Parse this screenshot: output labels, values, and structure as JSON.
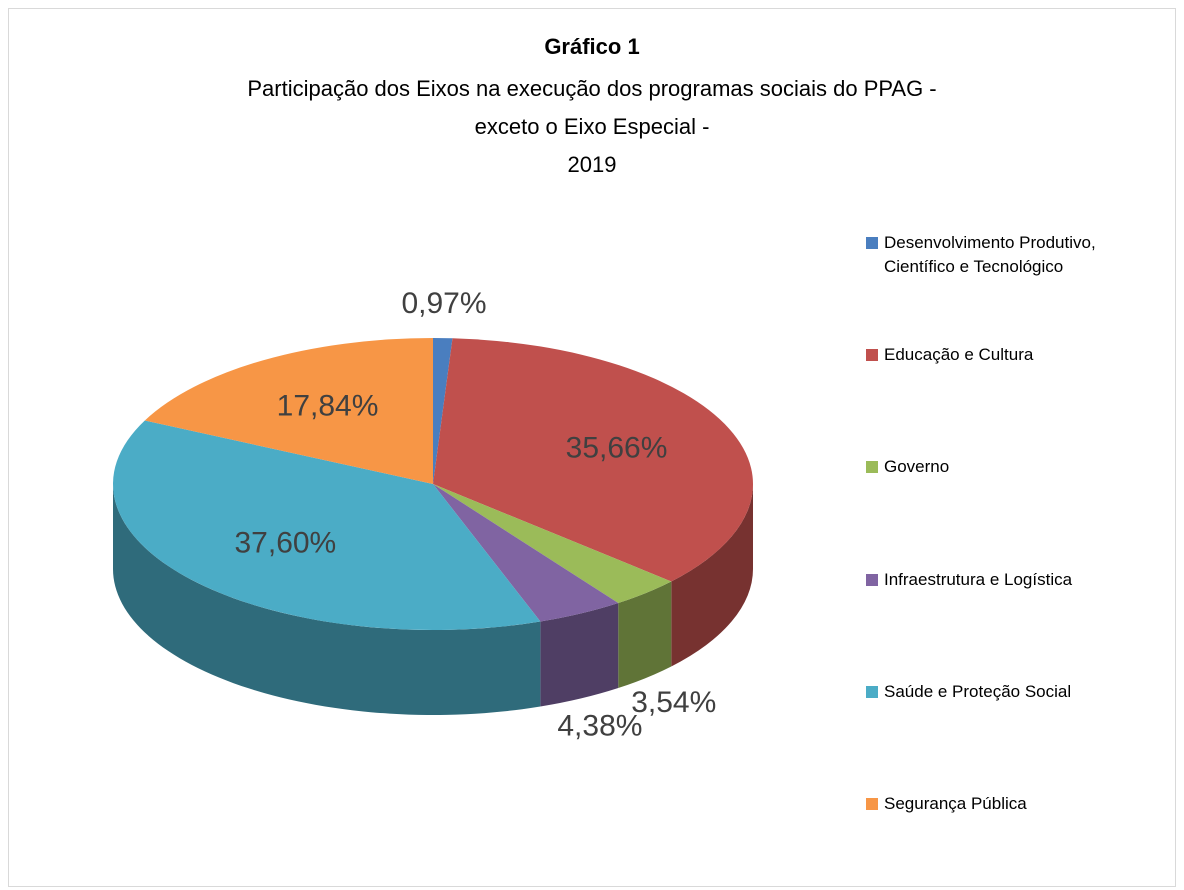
{
  "chart_data": {
    "type": "pie",
    "title": "Gráfico 1",
    "subtitle": [
      "Participação dos Eixos na execução dos programas sociais do PPAG -",
      "exceto o Eixo Especial -",
      "2019"
    ],
    "categories": [
      "Desenvolvimento Produtivo, Científico e Tecnológico",
      "Educação e Cultura",
      "Governo",
      "Infraestrutura e Logística",
      "Saúde e Proteção Social",
      "Segurança Pública"
    ],
    "values": [
      0.97,
      35.66,
      3.54,
      4.38,
      37.6,
      17.84
    ],
    "value_labels": [
      "0,97%",
      "35,66%",
      "3,54%",
      "4,38%",
      "37,60%",
      "17,84%"
    ],
    "colors": [
      "#4a7ebf",
      "#c0504d",
      "#9bbb59",
      "#8064a2",
      "#4bacc6",
      "#f79646"
    ],
    "legend": "right"
  }
}
